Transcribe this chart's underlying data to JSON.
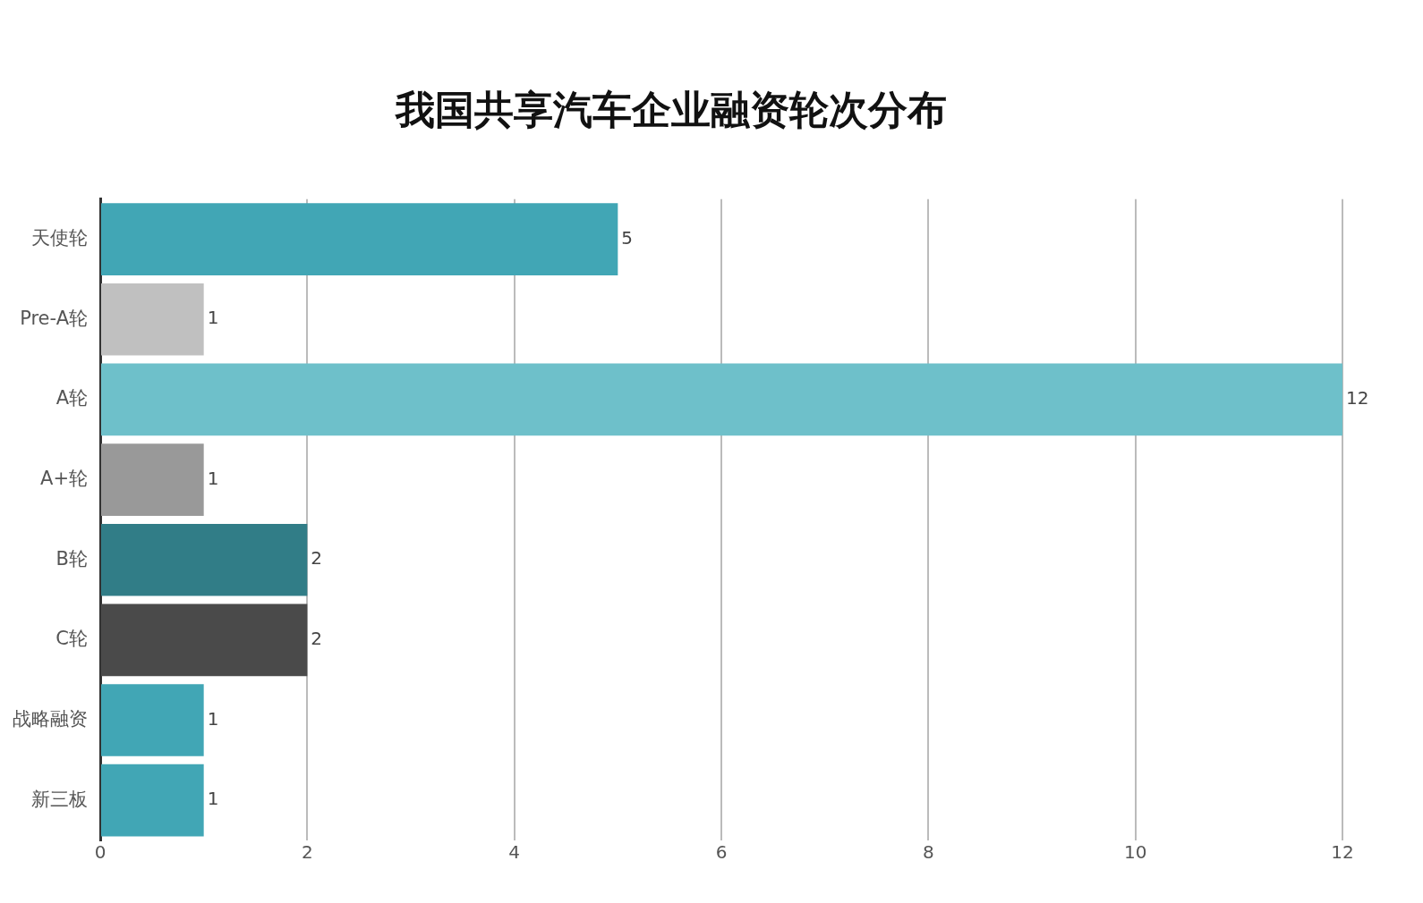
{
  "chart_data": {
    "type": "bar",
    "orientation": "horizontal",
    "title": "我国共享汽车企业融资轮次分布",
    "categories": [
      "天使轮",
      "Pre-A轮",
      "A轮",
      "A+轮",
      "B轮",
      "C轮",
      "战略融资",
      "新三板"
    ],
    "values": [
      5,
      1,
      12,
      1,
      2,
      2,
      1,
      1
    ],
    "colors": [
      "#41a6b5",
      "#c0c0c0",
      "#6ec0ca",
      "#999999",
      "#317d87",
      "#4a4a4a",
      "#41a6b5",
      "#41a6b5"
    ],
    "xlim": [
      0,
      12
    ],
    "xticks": [
      0,
      2,
      4,
      6,
      8,
      10,
      12
    ],
    "grid": "x",
    "data_labels": true,
    "legend": false
  }
}
